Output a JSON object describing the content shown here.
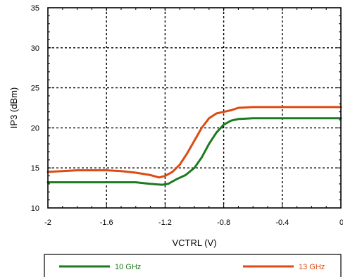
{
  "chart_data": {
    "type": "line",
    "xlabel": "VCTRL (V)",
    "ylabel": "IP3 (dBm)",
    "xlim": [
      -2,
      0
    ],
    "ylim": [
      10,
      35
    ],
    "x_ticks": [
      "-2",
      "-1.6",
      "-1.2",
      "-0.8",
      "-0.4",
      "0"
    ],
    "y_ticks": [
      "10",
      "15",
      "20",
      "25",
      "30",
      "35"
    ],
    "grid": true,
    "legend_position": "bottom",
    "series": [
      {
        "name": "10 GHz",
        "color": "#1e7a1e",
        "points": [
          [
            -2.0,
            13.2
          ],
          [
            -1.8,
            13.2
          ],
          [
            -1.6,
            13.2
          ],
          [
            -1.4,
            13.2
          ],
          [
            -1.3,
            13.0
          ],
          [
            -1.22,
            12.9
          ],
          [
            -1.18,
            13.0
          ],
          [
            -1.12,
            13.6
          ],
          [
            -1.06,
            14.1
          ],
          [
            -1.0,
            15.0
          ],
          [
            -0.95,
            16.3
          ],
          [
            -0.9,
            18.0
          ],
          [
            -0.85,
            19.4
          ],
          [
            -0.8,
            20.4
          ],
          [
            -0.75,
            20.9
          ],
          [
            -0.7,
            21.1
          ],
          [
            -0.6,
            21.2
          ],
          [
            -0.4,
            21.2
          ],
          [
            -0.2,
            21.2
          ],
          [
            0.0,
            21.2
          ]
        ]
      },
      {
        "name": "13 GHz",
        "color": "#dd4a14",
        "points": [
          [
            -2.0,
            14.5
          ],
          [
            -1.9,
            14.6
          ],
          [
            -1.8,
            14.7
          ],
          [
            -1.6,
            14.7
          ],
          [
            -1.5,
            14.6
          ],
          [
            -1.4,
            14.4
          ],
          [
            -1.3,
            14.1
          ],
          [
            -1.24,
            13.8
          ],
          [
            -1.2,
            14.0
          ],
          [
            -1.15,
            14.5
          ],
          [
            -1.1,
            15.4
          ],
          [
            -1.05,
            16.8
          ],
          [
            -1.0,
            18.4
          ],
          [
            -0.95,
            20.0
          ],
          [
            -0.9,
            21.2
          ],
          [
            -0.85,
            21.8
          ],
          [
            -0.8,
            22.0
          ],
          [
            -0.75,
            22.2
          ],
          [
            -0.7,
            22.5
          ],
          [
            -0.6,
            22.6
          ],
          [
            -0.4,
            22.6
          ],
          [
            -0.2,
            22.6
          ],
          [
            0.0,
            22.6
          ]
        ]
      }
    ]
  }
}
